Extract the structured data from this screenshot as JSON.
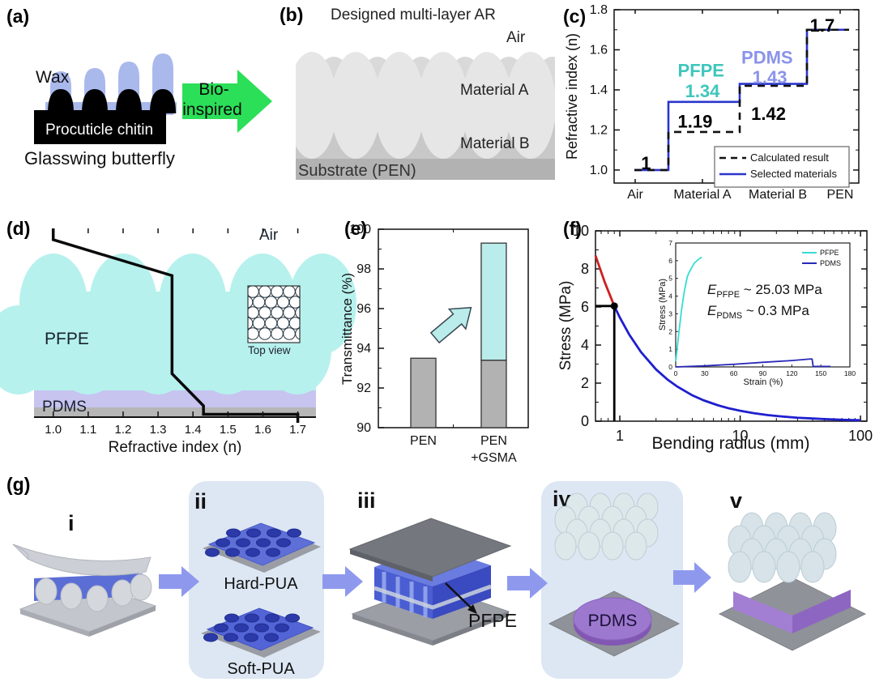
{
  "panels": {
    "a": {
      "label": "(a)",
      "wax": "Wax",
      "chitin": "Procuticle chitin",
      "caption": "Glasswing butterfly"
    },
    "bio_arrow": {
      "line1": "Bio-",
      "line2": "inspired"
    },
    "b": {
      "label": "(b)",
      "title": "Designed multi-layer AR",
      "air": "Air",
      "material_a": "Material A",
      "material_b": "Material B",
      "substrate": "Substrate (PEN)"
    },
    "c": {
      "label": "(c)"
    },
    "d": {
      "label": "(d)",
      "air": "Air",
      "pfpe": "PFPE",
      "pdms": "PDMS",
      "inset_caption": "Top view"
    },
    "e": {
      "label": "(e)"
    },
    "f": {
      "label": "(f)"
    },
    "g": {
      "label": "(g)",
      "step1": "i",
      "step2": "ii",
      "step3": "iii",
      "step4": "iv",
      "step5": "v",
      "hard_pua": "Hard-PUA",
      "soft_pua": "Soft-PUA",
      "pfpe": "PFPE",
      "pdms": "PDMS"
    }
  },
  "colors": {
    "bio_arrow_green": "#2bdf58",
    "wax_blue": "#aab9ec",
    "pfpe_cyan": "#b6f1ed",
    "pdms_purple": "#c7c4f0",
    "selected_blue": "#2a35cc",
    "pfpe_text": "#3fc6bc",
    "pdms_text": "#8a93ea",
    "process_arrow": "#8e99ee",
    "stress_red": "#cc2020",
    "stress_blue": "#1f1fcf"
  },
  "chart_data": [
    {
      "id": "c",
      "type": "line",
      "ylabel": "Refractive index (n)",
      "categories": [
        "Air",
        "Material A",
        "Material B",
        "PEN"
      ],
      "ylim": [
        0.935,
        1.8
      ],
      "yticks": [
        1.0,
        1.2,
        1.4,
        1.6,
        1.8
      ],
      "yticks_minor": [
        1.1,
        1.3,
        1.5,
        1.7
      ],
      "series": [
        {
          "name": "Selected materials",
          "style": "solid",
          "color": "#2a35cc",
          "values": [
            1.0,
            1.34,
            1.43,
            1.7
          ]
        },
        {
          "name": "Calculated result",
          "style": "dashed",
          "color": "#111111",
          "values": [
            1.0,
            1.19,
            1.42,
            1.7
          ]
        }
      ],
      "legend_position": "bottom-right",
      "legend_order": [
        "Calculated result",
        "Selected materials"
      ],
      "annotations": [
        {
          "text": "1",
          "fx": 0.11,
          "fy": 0.92,
          "color": "#000000"
        },
        {
          "text": "PFPE",
          "fx": 0.26,
          "fy": 0.385,
          "color": "#3fc6bc"
        },
        {
          "text": "1.34",
          "fx": 0.29,
          "fy": 0.505,
          "color": "#3fc6bc"
        },
        {
          "text": "1.19",
          "fx": 0.26,
          "fy": 0.68,
          "color": "#000000"
        },
        {
          "text": "PDMS",
          "fx": 0.52,
          "fy": 0.31,
          "color": "#8a93ea"
        },
        {
          "text": "1.43",
          "fx": 0.565,
          "fy": 0.425,
          "color": "#8a93ea"
        },
        {
          "text": "1.42",
          "fx": 0.56,
          "fy": 0.635,
          "color": "#000000"
        },
        {
          "text": "1.7",
          "fx": 0.8,
          "fy": 0.125,
          "color": "#000000"
        }
      ]
    },
    {
      "id": "e",
      "type": "bar",
      "ylabel": "Transmittance (%)",
      "ylim": [
        90,
        100
      ],
      "yticks": [
        90,
        92,
        94,
        96,
        98,
        100
      ],
      "yticks_minor": [
        91,
        93,
        95,
        97,
        99
      ],
      "categories": [
        "PEN",
        "PEN\n+GSMA"
      ],
      "bars": [
        {
          "category": "PEN",
          "segments": [
            {
              "from": 90,
              "to": 93.5,
              "color": "#b2b2b2"
            }
          ]
        },
        {
          "category": "PEN +GSMA",
          "segments": [
            {
              "from": 90,
              "to": 93.4,
              "color": "#b2b2b2"
            },
            {
              "from": 93.4,
              "to": 99.3,
              "color": "#b9ecea"
            }
          ]
        }
      ]
    },
    {
      "id": "f_main",
      "type": "line",
      "xlabel": "Bending radius (mm)",
      "ylabel": "Stress (MPa)",
      "xscale": "log",
      "xlim": [
        0.628,
        113
      ],
      "ylim": [
        0,
        10
      ],
      "xticks": [
        1,
        10,
        100
      ],
      "yticks": [
        0,
        2,
        4,
        6,
        8,
        10
      ],
      "series": [
        {
          "name": "high-stress branch",
          "color": "#cc2020",
          "points": [
            [
              0.628,
              8.7
            ],
            [
              0.75,
              7.3
            ],
            [
              0.9,
              6.05
            ]
          ]
        },
        {
          "name": "low-stress branch",
          "color": "#1f1fcf",
          "points": [
            [
              0.9,
              6.05
            ],
            [
              1,
              5.45
            ],
            [
              1.2,
              4.54
            ],
            [
              1.5,
              3.63
            ],
            [
              2,
              2.72
            ],
            [
              2.5,
              2.18
            ],
            [
              3,
              1.82
            ],
            [
              4,
              1.36
            ],
            [
              5,
              1.09
            ],
            [
              6.5,
              0.84
            ],
            [
              8,
              0.68
            ],
            [
              10,
              0.55
            ],
            [
              13,
              0.42
            ],
            [
              17,
              0.32
            ],
            [
              22,
              0.25
            ],
            [
              30,
              0.18
            ],
            [
              40,
              0.14
            ],
            [
              55,
              0.1
            ],
            [
              75,
              0.07
            ],
            [
              100,
              0.05
            ]
          ]
        }
      ],
      "marker": {
        "x": 0.9,
        "y": 6.05
      },
      "guides": {
        "h": 6.05,
        "v": 0.9
      }
    },
    {
      "id": "f_inset",
      "type": "line",
      "xlabel": "Strain (%)",
      "ylabel": "Stress (MPa)",
      "xlim": [
        0,
        180
      ],
      "ylim": [
        0,
        7
      ],
      "xticks": [
        0,
        30,
        60,
        90,
        120,
        150,
        180
      ],
      "yticks": [
        0,
        1,
        2,
        3,
        4,
        5,
        6,
        7
      ],
      "series": [
        {
          "name": "PFPE",
          "color": "#35dcd2",
          "points": [
            [
              0,
              0.3
            ],
            [
              3,
              1.8
            ],
            [
              6,
              3.2
            ],
            [
              9,
              4.3
            ],
            [
              12,
              5.1
            ],
            [
              14,
              5.35
            ],
            [
              19,
              5.85
            ],
            [
              24,
              6.1
            ],
            [
              27,
              6.2
            ]
          ]
        },
        {
          "name": "PDMS",
          "color": "#2929b8",
          "points": [
            [
              0,
              0
            ],
            [
              30,
              0.06
            ],
            [
              60,
              0.15
            ],
            [
              90,
              0.26
            ],
            [
              120,
              0.36
            ],
            [
              140,
              0.45
            ],
            [
              141,
              0.44
            ],
            [
              142,
              0.03
            ],
            [
              160,
              0.03
            ]
          ]
        }
      ],
      "legend_position": "top-right",
      "annotation_lines": [
        {
          "e": "E",
          "sub": "PFPE",
          "rest": "~ 25.03 MPa"
        },
        {
          "e": "E",
          "sub": "PDMS",
          "rest": "~ 0.3 MPa"
        }
      ]
    },
    {
      "id": "d_profile",
      "type": "line",
      "xlabel": "Refractive index (n)",
      "xlim": [
        0.945,
        1.752
      ],
      "xticks": [
        1.0,
        1.1,
        1.2,
        1.3,
        1.4,
        1.5,
        1.6,
        1.7
      ],
      "points": [
        [
          1.0,
          0
        ],
        [
          1.0,
          0.06
        ],
        [
          1.34,
          0.25
        ],
        [
          1.34,
          0.77
        ],
        [
          1.43,
          0.94
        ],
        [
          1.43,
          0.985
        ],
        [
          1.7,
          0.985
        ],
        [
          1.7,
          1.03
        ]
      ]
    }
  ]
}
